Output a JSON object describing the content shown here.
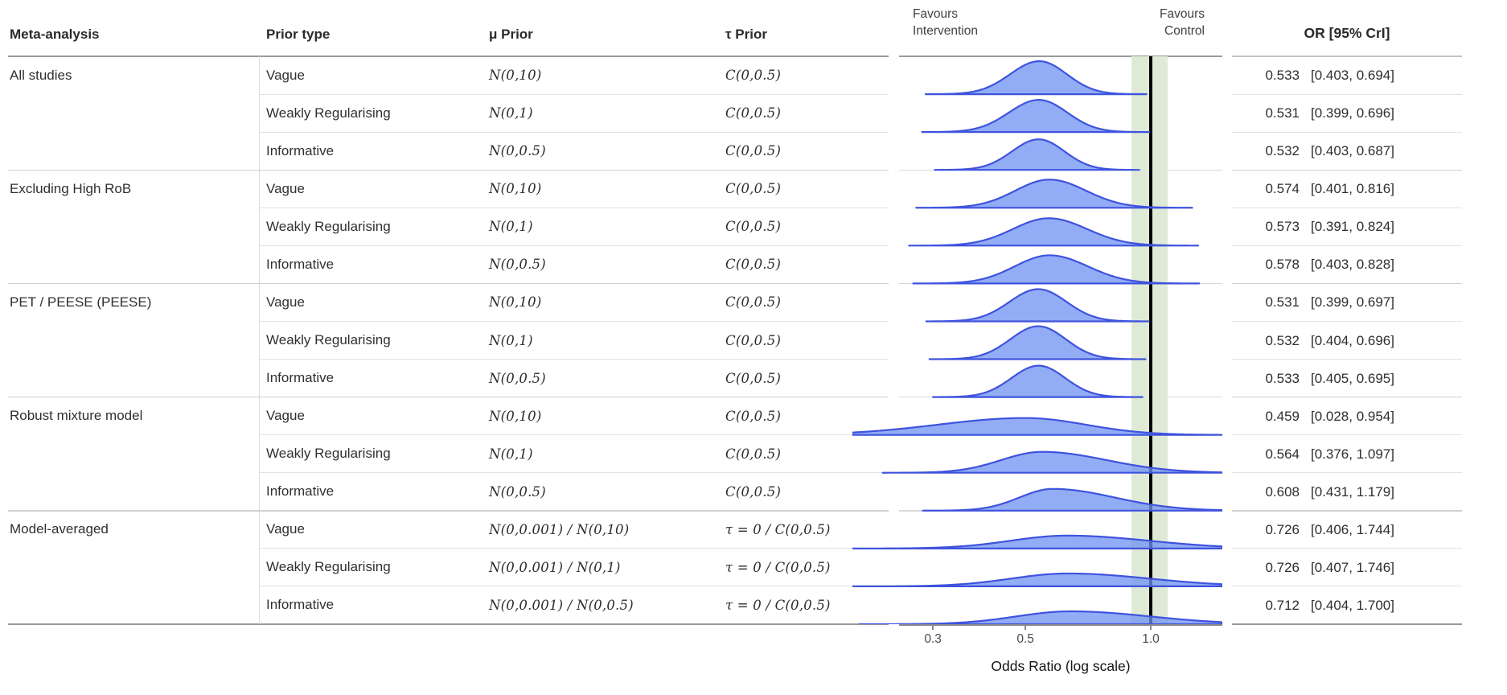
{
  "header": {
    "col_meta": "Meta-analysis",
    "col_prior_type": "Prior type",
    "col_mu": "μ Prior",
    "col_tau": "τ Prior",
    "favours_left": [
      "Favours",
      "Intervention"
    ],
    "favours_right": [
      "Favours",
      "Control"
    ],
    "col_or": "OR [95% CrI]"
  },
  "colors": {
    "density_fill": "rgba(109,146,241,0.75)",
    "density_stroke": "#3f53de",
    "rope_band": "#dfead6",
    "reference_line": "#000000",
    "grid_light": "#e2e2e2",
    "grid_group": "#d0d0d0",
    "rule_dark": "#9a9a9a"
  },
  "chart_data": {
    "type": "ridgeline_forest",
    "xlabel": "Odds Ratio (log scale)",
    "x_scale": "log",
    "x_range": [
      0.25,
      1.5
    ],
    "x_ticks": [
      0.3,
      0.5,
      1.0
    ],
    "x_tick_labels": [
      "0.3",
      "0.5",
      "1.0"
    ],
    "reference_line": 1.0,
    "rope_band": [
      0.9,
      1.1
    ],
    "groups": [
      {
        "label": "All studies",
        "rows": [
          {
            "prior_type": "Vague",
            "mu_prior": "N(0,10)",
            "tau_prior": "C(0,0.5)",
            "or": 0.533,
            "cri": [
              0.403,
              0.694
            ],
            "or_text": "0.533",
            "cri_text": "[0.403, 0.694]",
            "density": {
              "mode": 0.54,
              "sigma_left": 0.07,
              "sigma_right": 0.066,
              "peak": 41
            }
          },
          {
            "prior_type": "Weakly Regularising",
            "mu_prior": "N(0,1)",
            "tau_prior": "C(0,0.5)",
            "or": 0.531,
            "cri": [
              0.399,
              0.696
            ],
            "or_text": "0.531",
            "cri_text": "[0.399, 0.696]",
            "density": {
              "mode": 0.539,
              "sigma_left": 0.072,
              "sigma_right": 0.068,
              "peak": 40
            }
          },
          {
            "prior_type": "Informative",
            "mu_prior": "N(0,0.5)",
            "tau_prior": "C(0,0.5)",
            "or": 0.532,
            "cri": [
              0.403,
              0.687
            ],
            "or_text": "0.532",
            "cri_text": "[0.403, 0.687]",
            "density": {
              "mode": 0.538,
              "sigma_left": 0.064,
              "sigma_right": 0.062,
              "peak": 38
            }
          }
        ]
      },
      {
        "label": "Excluding High RoB",
        "rows": [
          {
            "prior_type": "Vague",
            "mu_prior": "N(0,10)",
            "tau_prior": "C(0,0.5)",
            "or": 0.574,
            "cri": [
              0.401,
              0.816
            ],
            "or_text": "0.574",
            "cri_text": "[0.401, 0.816]",
            "density": {
              "mode": 0.571,
              "sigma_left": 0.082,
              "sigma_right": 0.088,
              "peak": 35
            }
          },
          {
            "prior_type": "Weakly Regularising",
            "mu_prior": "N(0,1)",
            "tau_prior": "C(0,0.5)",
            "or": 0.573,
            "cri": [
              0.391,
              0.824
            ],
            "or_text": "0.573",
            "cri_text": "[0.391, 0.824]",
            "density": {
              "mode": 0.569,
              "sigma_left": 0.086,
              "sigma_right": 0.092,
              "peak": 34
            }
          },
          {
            "prior_type": "Informative",
            "mu_prior": "N(0,0.5)",
            "tau_prior": "C(0,0.5)",
            "or": 0.578,
            "cri": [
              0.403,
              0.828
            ],
            "or_text": "0.578",
            "cri_text": "[0.403, 0.828]",
            "density": {
              "mode": 0.572,
              "sigma_left": 0.084,
              "sigma_right": 0.092,
              "peak": 35
            }
          }
        ]
      },
      {
        "label": "PET / PEESE (PEESE)",
        "rows": [
          {
            "prior_type": "Vague",
            "mu_prior": "N(0,10)",
            "tau_prior": "C(0,0.5)",
            "or": 0.531,
            "cri": [
              0.399,
              0.697
            ],
            "or_text": "0.531",
            "cri_text": "[0.399, 0.697]",
            "density": {
              "mode": 0.537,
              "sigma_left": 0.069,
              "sigma_right": 0.068,
              "peak": 40
            }
          },
          {
            "prior_type": "Weakly Regularising",
            "mu_prior": "N(0,1)",
            "tau_prior": "C(0,0.5)",
            "or": 0.532,
            "cri": [
              0.404,
              0.696
            ],
            "or_text": "0.532",
            "cri_text": "[0.404, 0.696]",
            "density": {
              "mode": 0.537,
              "sigma_left": 0.067,
              "sigma_right": 0.066,
              "peak": 41
            }
          },
          {
            "prior_type": "Informative",
            "mu_prior": "N(0,0.5)",
            "tau_prior": "C(0,0.5)",
            "or": 0.533,
            "cri": [
              0.405,
              0.695
            ],
            "or_text": "0.533",
            "cri_text": "[0.405, 0.695]",
            "density": {
              "mode": 0.538,
              "sigma_left": 0.065,
              "sigma_right": 0.064,
              "peak": 39
            }
          }
        ]
      },
      {
        "label": "Robust mixture model",
        "rows": [
          {
            "prior_type": "Vague",
            "mu_prior": "N(0,10)",
            "tau_prior": "C(0,0.5)",
            "or": 0.459,
            "cri": [
              0.028,
              0.954
            ],
            "or_text": "0.459",
            "cri_text": "[0.028, 0.954]",
            "density": {
              "mode": 0.5,
              "sigma_left": 0.21,
              "sigma_right": 0.145,
              "peak": 21
            }
          },
          {
            "prior_type": "Weakly Regularising",
            "mu_prior": "N(0,1)",
            "tau_prior": "C(0,0.5)",
            "or": 0.564,
            "cri": [
              0.376,
              1.097
            ],
            "or_text": "0.564",
            "cri_text": "[0.376, 1.097]",
            "density": {
              "mode": 0.548,
              "sigma_left": 0.098,
              "sigma_right": 0.155,
              "peak": 26
            }
          },
          {
            "prior_type": "Informative",
            "mu_prior": "N(0,0.5)",
            "tau_prior": "C(0,0.5)",
            "or": 0.608,
            "cri": [
              0.431,
              1.179
            ],
            "or_text": "0.608",
            "cri_text": "[0.431, 1.179]",
            "density": {
              "mode": 0.582,
              "sigma_left": 0.08,
              "sigma_right": 0.148,
              "peak": 27
            }
          }
        ]
      },
      {
        "label": "Model-averaged",
        "rows": [
          {
            "prior_type": "Vague",
            "mu_prior": "N(0,0.001)  /  N(0,10)",
            "tau_prior": "τ = 0  /  C(0,0.5)",
            "or": 0.726,
            "cri": [
              0.406,
              1.744
            ],
            "or_text": "0.726",
            "cri_text": "[0.406, 1.744]",
            "density": {
              "mode": 0.63,
              "sigma_left": 0.135,
              "sigma_right": 0.195,
              "peak": 16
            }
          },
          {
            "prior_type": "Weakly Regularising",
            "mu_prior": "N(0,0.001)  /  N(0,1)",
            "tau_prior": "τ = 0  /  C(0,0.5)",
            "or": 0.726,
            "cri": [
              0.407,
              1.746
            ],
            "or_text": "0.726",
            "cri_text": "[0.407, 1.746]",
            "density": {
              "mode": 0.632,
              "sigma_left": 0.135,
              "sigma_right": 0.195,
              "peak": 16
            }
          },
          {
            "prior_type": "Informative",
            "mu_prior": "N(0,0.001)  /  N(0,0.5)",
            "tau_prior": "τ = 0  /  C(0,0.5)",
            "or": 0.712,
            "cri": [
              0.404,
              1.7
            ],
            "or_text": "0.712",
            "cri_text": "[0.404, 1.700]",
            "density": {
              "mode": 0.642,
              "sigma_left": 0.13,
              "sigma_right": 0.19,
              "peak": 16
            }
          }
        ]
      }
    ]
  }
}
